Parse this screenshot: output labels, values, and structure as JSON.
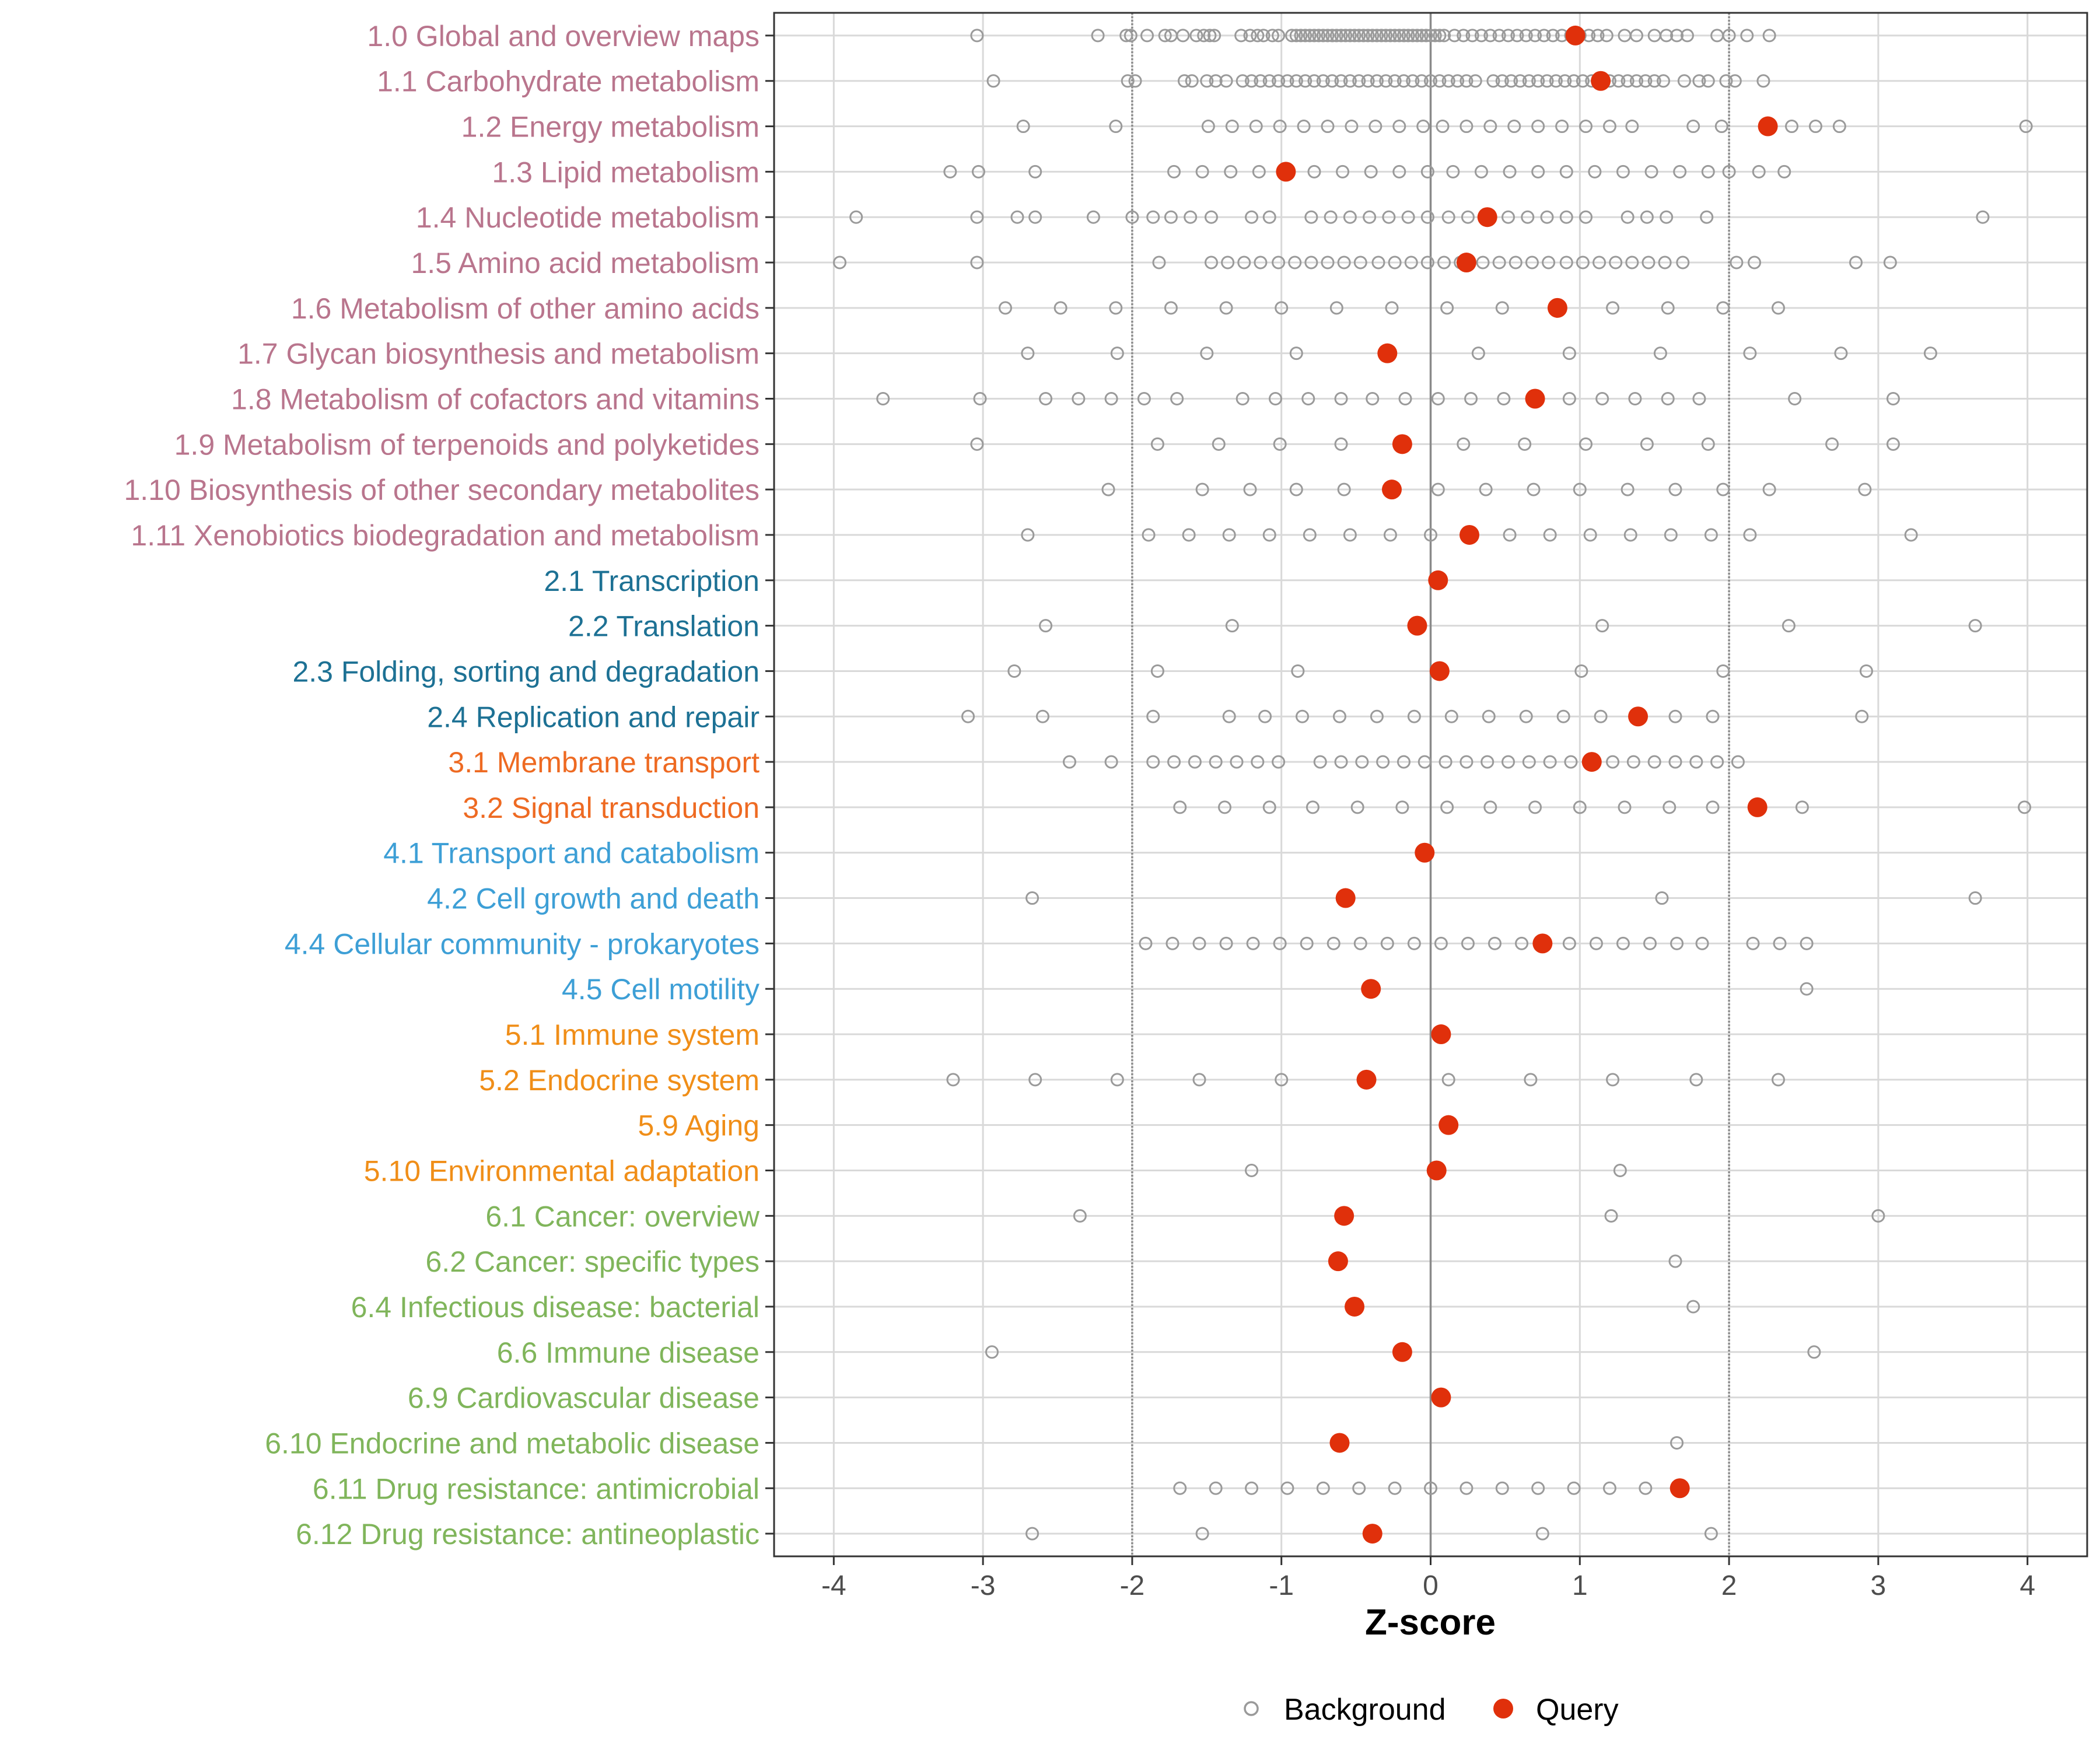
{
  "chart_data": {
    "type": "scatter",
    "xlabel": "Z-score",
    "xlim": [
      -4.4,
      4.4
    ],
    "xticks": [
      -4,
      -3,
      -2,
      -1,
      0,
      1,
      2,
      3,
      4
    ],
    "xtick_labels": [
      "-4",
      "-3",
      "-2",
      "-1",
      "0",
      "1",
      "2",
      "3",
      "4"
    ],
    "reference_lines": [
      -2,
      2
    ],
    "zero_line": 0,
    "grid": true,
    "legend_position": "bottom",
    "legend": [
      {
        "key": "background",
        "label": "Background"
      },
      {
        "key": "query",
        "label": "Query"
      }
    ],
    "colors": {
      "background_point": "#9a9a9a",
      "query_point": "#e0300b",
      "grid": "#d9d9d9",
      "reference_line": "#8a8a8a",
      "zero_line": "#8a8a8a",
      "group_1": "#b9758d",
      "group_2": "#1d7194",
      "group_3": "#ee6a22",
      "group_4": "#3d9fd6",
      "group_5": "#f08e18",
      "group_6": "#80b55b"
    },
    "categories": [
      {
        "label": "1.0 Global and overview maps",
        "group": 1,
        "query": 0.97,
        "background": [
          -3.04,
          -2.23,
          -2.04,
          -2.01,
          -1.9,
          -1.78,
          -1.74,
          -1.66,
          -1.57,
          -1.52,
          -1.48,
          -1.45,
          -1.27,
          -1.21,
          -1.16,
          -1.12,
          -1.06,
          -1.02,
          -0.93,
          -0.9,
          -0.87,
          -0.84,
          -0.81,
          -0.78,
          -0.75,
          -0.72,
          -0.69,
          -0.66,
          -0.63,
          -0.6,
          -0.57,
          -0.54,
          -0.51,
          -0.48,
          -0.45,
          -0.42,
          -0.39,
          -0.36,
          -0.33,
          -0.3,
          -0.27,
          -0.24,
          -0.21,
          -0.18,
          -0.15,
          -0.12,
          -0.09,
          -0.06,
          -0.03,
          0.0,
          0.03,
          0.06,
          0.09,
          0.16,
          0.22,
          0.28,
          0.34,
          0.4,
          0.46,
          0.52,
          0.58,
          0.64,
          0.7,
          0.76,
          0.82,
          0.88,
          0.94,
          1.0,
          1.06,
          1.12,
          1.18,
          1.3,
          1.38,
          1.5,
          1.58,
          1.65,
          1.72,
          1.92,
          2.0,
          2.12,
          2.27
        ]
      },
      {
        "label": "1.1 Carbohydrate metabolism",
        "group": 1,
        "query": 1.14,
        "background": [
          -2.93,
          -2.03,
          -1.98,
          -1.65,
          -1.6,
          -1.5,
          -1.44,
          -1.37,
          -1.26,
          -1.2,
          -1.14,
          -1.08,
          -1.02,
          -0.96,
          -0.9,
          -0.84,
          -0.78,
          -0.72,
          -0.66,
          -0.6,
          -0.54,
          -0.48,
          -0.42,
          -0.36,
          -0.3,
          -0.24,
          -0.18,
          -0.12,
          -0.06,
          0.0,
          0.06,
          0.12,
          0.18,
          0.24,
          0.3,
          0.42,
          0.48,
          0.54,
          0.6,
          0.66,
          0.72,
          0.78,
          0.84,
          0.9,
          0.96,
          1.02,
          1.08,
          1.2,
          1.26,
          1.32,
          1.38,
          1.44,
          1.5,
          1.56,
          1.7,
          1.8,
          1.86,
          1.98,
          2.04,
          2.23
        ]
      },
      {
        "label": "1.2 Energy metabolism",
        "group": 1,
        "query": 2.26,
        "background": [
          -2.73,
          -2.11,
          -1.49,
          -1.33,
          -1.17,
          -1.01,
          -0.85,
          -0.69,
          -0.53,
          -0.37,
          -0.21,
          -0.05,
          0.08,
          0.24,
          0.4,
          0.56,
          0.72,
          0.88,
          1.04,
          1.2,
          1.35,
          1.76,
          1.95,
          2.42,
          2.58,
          2.74,
          3.99
        ]
      },
      {
        "label": "1.3 Lipid metabolism",
        "group": 1,
        "query": -0.97,
        "background": [
          -3.22,
          -3.03,
          -2.65,
          -1.72,
          -1.53,
          -1.34,
          -1.15,
          -0.78,
          -0.59,
          -0.4,
          -0.21,
          -0.02,
          0.15,
          0.34,
          0.53,
          0.72,
          0.91,
          1.1,
          1.29,
          1.48,
          1.67,
          1.86,
          2.0,
          2.2,
          2.37
        ]
      },
      {
        "label": "1.4 Nucleotide metabolism",
        "group": 1,
        "query": 0.38,
        "background": [
          -3.85,
          -3.04,
          -2.77,
          -2.65,
          -2.26,
          -2.0,
          -1.86,
          -1.74,
          -1.61,
          -1.47,
          -1.2,
          -1.08,
          -0.8,
          -0.67,
          -0.54,
          -0.41,
          -0.28,
          -0.15,
          -0.02,
          0.12,
          0.25,
          0.52,
          0.65,
          0.78,
          0.91,
          1.04,
          1.32,
          1.45,
          1.58,
          1.85,
          3.7
        ]
      },
      {
        "label": "1.5 Amino acid metabolism",
        "group": 1,
        "query": 0.24,
        "background": [
          -3.96,
          -3.04,
          -1.82,
          -1.47,
          -1.36,
          -1.25,
          -1.14,
          -1.02,
          -0.91,
          -0.8,
          -0.69,
          -0.58,
          -0.47,
          -0.35,
          -0.24,
          -0.13,
          -0.02,
          0.09,
          0.2,
          0.35,
          0.46,
          0.57,
          0.68,
          0.79,
          0.91,
          1.02,
          1.13,
          1.24,
          1.35,
          1.46,
          1.57,
          1.69,
          2.05,
          2.17,
          2.85,
          3.08
        ]
      },
      {
        "label": "1.6 Metabolism of other amino acids",
        "group": 1,
        "query": 0.85,
        "background": [
          -2.85,
          -2.48,
          -2.11,
          -1.74,
          -1.37,
          -1.0,
          -0.63,
          -0.26,
          0.11,
          0.48,
          1.22,
          1.59,
          1.96,
          2.33
        ]
      },
      {
        "label": "1.7 Glycan biosynthesis and metabolism",
        "group": 1,
        "query": -0.29,
        "background": [
          -2.7,
          -2.1,
          -1.5,
          -0.9,
          0.32,
          0.93,
          1.54,
          2.14,
          2.75,
          3.35
        ]
      },
      {
        "label": "1.8 Metabolism of cofactors and vitamins",
        "group": 1,
        "query": 0.7,
        "background": [
          -3.67,
          -3.02,
          -2.58,
          -2.36,
          -2.14,
          -1.92,
          -1.7,
          -1.26,
          -1.04,
          -0.82,
          -0.6,
          -0.39,
          -0.17,
          0.05,
          0.27,
          0.49,
          0.93,
          1.15,
          1.37,
          1.59,
          1.8,
          2.44,
          3.1
        ]
      },
      {
        "label": "1.9 Metabolism of terpenoids and polyketides",
        "group": 1,
        "query": -0.19,
        "background": [
          -3.04,
          -1.83,
          -1.42,
          -1.01,
          -0.6,
          0.22,
          0.63,
          1.04,
          1.45,
          1.86,
          2.69,
          3.1
        ]
      },
      {
        "label": "1.10 Biosynthesis of other secondary metabolites",
        "group": 1,
        "query": -0.26,
        "background": [
          -2.16,
          -1.53,
          -1.21,
          -0.9,
          -0.58,
          0.05,
          0.37,
          0.69,
          1.0,
          1.32,
          1.64,
          1.96,
          2.27,
          2.91
        ]
      },
      {
        "label": "1.11 Xenobiotics biodegradation and metabolism",
        "group": 1,
        "query": 0.26,
        "background": [
          -2.7,
          -1.89,
          -1.62,
          -1.35,
          -1.08,
          -0.81,
          -0.54,
          -0.27,
          0.0,
          0.53,
          0.8,
          1.07,
          1.34,
          1.61,
          1.88,
          2.14,
          3.22
        ]
      },
      {
        "label": "2.1 Transcription",
        "group": 2,
        "query": 0.05,
        "background": []
      },
      {
        "label": "2.2 Translation",
        "group": 2,
        "query": -0.09,
        "background": [
          -2.58,
          -1.33,
          1.15,
          2.4,
          3.65
        ]
      },
      {
        "label": "2.3 Folding, sorting and degradation",
        "group": 2,
        "query": 0.06,
        "background": [
          -2.79,
          -1.83,
          -0.89,
          1.01,
          1.96,
          2.92
        ]
      },
      {
        "label": "2.4 Replication and repair",
        "group": 2,
        "query": 1.39,
        "background": [
          -3.1,
          -2.6,
          -1.86,
          -1.35,
          -1.11,
          -0.86,
          -0.61,
          -0.36,
          -0.11,
          0.14,
          0.39,
          0.64,
          0.89,
          1.14,
          1.64,
          1.89,
          2.89
        ]
      },
      {
        "label": "3.1 Membrane transport",
        "group": 3,
        "query": 1.08,
        "background": [
          -2.42,
          -2.14,
          -1.86,
          -1.72,
          -1.58,
          -1.44,
          -1.3,
          -1.16,
          -1.02,
          -0.74,
          -0.6,
          -0.46,
          -0.32,
          -0.18,
          -0.04,
          0.1,
          0.24,
          0.38,
          0.52,
          0.66,
          0.8,
          0.94,
          1.22,
          1.36,
          1.5,
          1.64,
          1.78,
          1.92,
          2.06
        ]
      },
      {
        "label": "3.2 Signal transduction",
        "group": 3,
        "query": 2.19,
        "background": [
          -1.68,
          -1.38,
          -1.08,
          -0.79,
          -0.49,
          -0.19,
          0.11,
          0.4,
          0.7,
          1.0,
          1.3,
          1.6,
          1.89,
          2.49,
          3.98
        ]
      },
      {
        "label": "4.1 Transport and catabolism",
        "group": 4,
        "query": -0.04,
        "background": []
      },
      {
        "label": "4.2 Cell growth and death",
        "group": 4,
        "query": -0.57,
        "background": [
          -2.67,
          1.55,
          3.65
        ]
      },
      {
        "label": "4.4 Cellular community - prokaryotes",
        "group": 4,
        "query": 0.75,
        "background": [
          -1.91,
          -1.73,
          -1.55,
          -1.37,
          -1.19,
          -1.01,
          -0.83,
          -0.65,
          -0.47,
          -0.29,
          -0.11,
          0.07,
          0.25,
          0.43,
          0.61,
          0.93,
          1.11,
          1.29,
          1.47,
          1.65,
          1.82,
          2.16,
          2.34,
          2.52
        ]
      },
      {
        "label": "4.5 Cell motility",
        "group": 4,
        "query": -0.4,
        "background": [
          2.52
        ]
      },
      {
        "label": "5.1 Immune system",
        "group": 5,
        "query": 0.07,
        "background": []
      },
      {
        "label": "5.2 Endocrine system",
        "group": 5,
        "query": -0.43,
        "background": [
          -3.2,
          -2.65,
          -2.1,
          -1.55,
          -1.0,
          0.12,
          0.67,
          1.22,
          1.78,
          2.33
        ]
      },
      {
        "label": "5.9 Aging",
        "group": 5,
        "query": 0.12,
        "background": []
      },
      {
        "label": "5.10 Environmental adaptation",
        "group": 5,
        "query": 0.04,
        "background": [
          -1.2,
          1.27
        ]
      },
      {
        "label": "6.1 Cancer: overview",
        "group": 6,
        "query": -0.58,
        "background": [
          -2.35,
          1.21,
          3.0
        ]
      },
      {
        "label": "6.2 Cancer: specific types",
        "group": 6,
        "query": -0.62,
        "background": [
          1.64
        ]
      },
      {
        "label": "6.4 Infectious disease: bacterial",
        "group": 6,
        "query": -0.51,
        "background": [
          1.76
        ]
      },
      {
        "label": "6.6 Immune disease",
        "group": 6,
        "query": -0.19,
        "background": [
          -2.94,
          2.57
        ]
      },
      {
        "label": "6.9 Cardiovascular disease",
        "group": 6,
        "query": 0.07,
        "background": []
      },
      {
        "label": "6.10 Endocrine and metabolic disease",
        "group": 6,
        "query": -0.61,
        "background": [
          1.65
        ]
      },
      {
        "label": "6.11 Drug resistance: antimicrobial",
        "group": 6,
        "query": 1.67,
        "background": [
          -1.68,
          -1.44,
          -1.2,
          -0.96,
          -0.72,
          -0.48,
          -0.24,
          0.0,
          0.24,
          0.48,
          0.72,
          0.96,
          1.2,
          1.44
        ]
      },
      {
        "label": "6.12 Drug resistance: antineoplastic",
        "group": 6,
        "query": -0.39,
        "background": [
          -2.67,
          -1.53,
          0.75,
          1.88
        ]
      }
    ]
  }
}
